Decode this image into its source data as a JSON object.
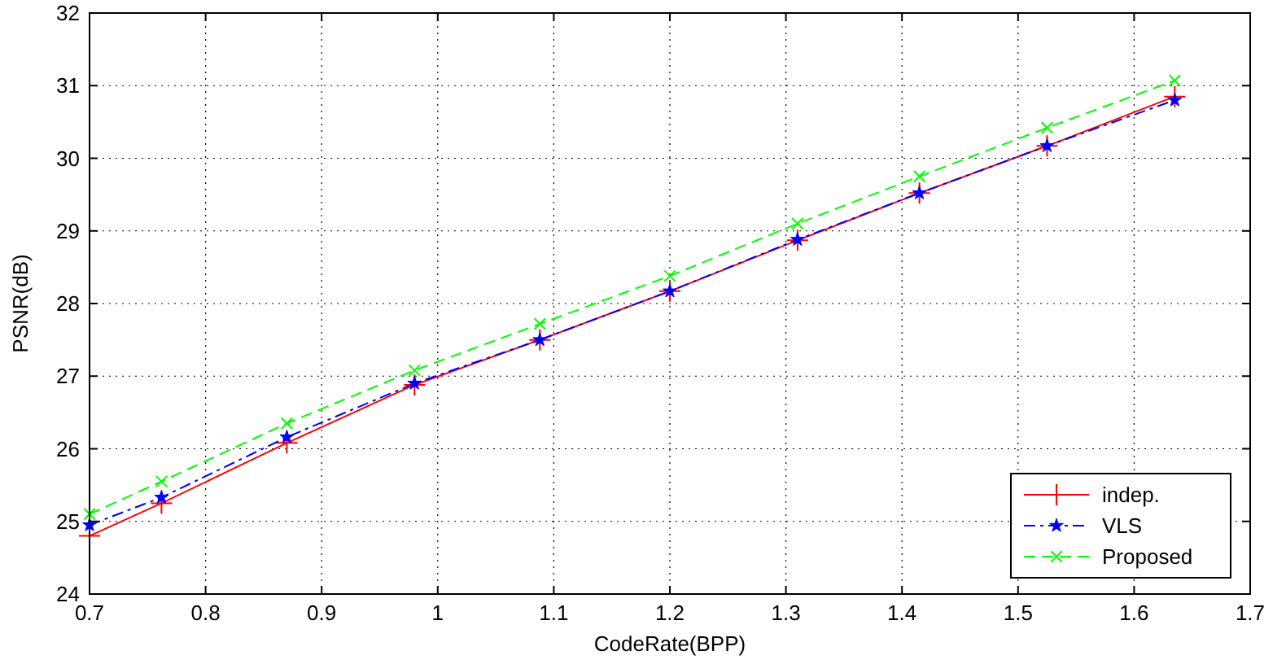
{
  "chart_data": {
    "type": "line",
    "xlabel": "CodeRate(BPP)",
    "ylabel": "PSNR(dB)",
    "xlim": [
      0.7,
      1.7
    ],
    "xticks": [
      0.7,
      0.8,
      0.9,
      1,
      1.1,
      1.2,
      1.3,
      1.4,
      1.5,
      1.6,
      1.7
    ],
    "ylim": [
      24,
      32
    ],
    "yticks": [
      24,
      25,
      26,
      27,
      28,
      29,
      30,
      31,
      32
    ],
    "grid": true,
    "legend": "bottom right",
    "x": [
      0.7,
      0.762,
      0.87,
      0.98,
      1.088,
      1.2,
      1.31,
      1.415,
      1.525,
      1.635
    ],
    "series": [
      {
        "name": "indep.",
        "color": "#ff0000",
        "marker": "cross",
        "line_style": "solid",
        "values": [
          24.8,
          25.25,
          26.08,
          26.88,
          27.5,
          28.17,
          28.87,
          29.52,
          30.17,
          30.85
        ]
      },
      {
        "name": "VLS",
        "color": "#0000ff",
        "marker": "star",
        "line_style": "dashed",
        "values": [
          24.95,
          25.33,
          26.16,
          26.9,
          27.5,
          28.17,
          28.88,
          29.52,
          30.17,
          30.8
        ]
      },
      {
        "name": "Proposed",
        "color": "#00ff00",
        "marker": "cross",
        "line_style": "dashed",
        "values": [
          25.1,
          25.55,
          26.35,
          27.08,
          27.72,
          28.38,
          29.1,
          29.75,
          30.42,
          31.07
        ]
      }
    ]
  }
}
